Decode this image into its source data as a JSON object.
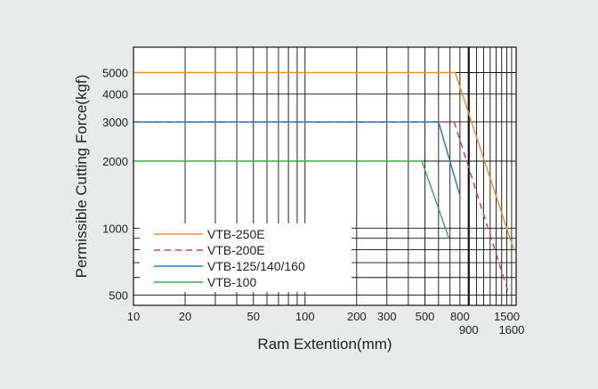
{
  "chart_data": {
    "type": "line",
    "title": "",
    "xlabel": "Ram Extention(mm)",
    "ylabel": "Permissible Cutting Force(kgf)",
    "xscale": "log",
    "yscale": "log",
    "xlim": [
      10,
      1700
    ],
    "ylim": [
      450,
      6500
    ],
    "grid": true,
    "legend_position": "bottom-left",
    "x_tick_labels": [
      {
        "value": 10,
        "label": "10",
        "row": 0
      },
      {
        "value": 20,
        "label": "20",
        "row": 0
      },
      {
        "value": 50,
        "label": "50",
        "row": 0
      },
      {
        "value": 100,
        "label": "100",
        "row": 0
      },
      {
        "value": 200,
        "label": "200",
        "row": 0
      },
      {
        "value": 300,
        "label": "300",
        "row": 0
      },
      {
        "value": 500,
        "label": "500",
        "row": 0
      },
      {
        "value": 800,
        "label": "800",
        "row": 0
      },
      {
        "value": 900,
        "label": "900",
        "row": 1
      },
      {
        "value": 1500,
        "label": "1500",
        "row": 0
      },
      {
        "value": 1600,
        "label": "1600",
        "row": 1
      }
    ],
    "y_tick_labels": [
      {
        "value": 500,
        "label": "500"
      },
      {
        "value": 1000,
        "label": "1000"
      },
      {
        "value": 2000,
        "label": "2000"
      },
      {
        "value": 3000,
        "label": "3000"
      },
      {
        "value": 4000,
        "label": "4000"
      },
      {
        "value": 5000,
        "label": "5000"
      }
    ],
    "x_grid": [
      10,
      20,
      30,
      40,
      50,
      60,
      70,
      80,
      90,
      100,
      200,
      300,
      400,
      500,
      600,
      700,
      800,
      900,
      1000,
      1100,
      1200,
      1300,
      1400,
      1500,
      1600
    ],
    "x_grid_bold": [
      900
    ],
    "y_grid": [
      500,
      600,
      700,
      800,
      900,
      1000,
      2000,
      3000,
      4000,
      5000
    ],
    "series": [
      {
        "name": "VTB-250E",
        "color": "#f0902c",
        "dash": false,
        "x": [
          10,
          750,
          1650
        ],
        "y": [
          5000,
          5000,
          800
        ]
      },
      {
        "name": "VTB-200E",
        "color": "#e23a5a",
        "dash": true,
        "x": [
          10,
          740,
          1550
        ],
        "y": [
          3000,
          3000,
          500
        ]
      },
      {
        "name": "VTB-125/140/160",
        "color": "#2a7ec4",
        "dash": false,
        "x": [
          10,
          600,
          800
        ],
        "y": [
          3000,
          3000,
          1400
        ]
      },
      {
        "name": "VTB-100",
        "color": "#3fae4c",
        "dash": false,
        "x": [
          10,
          480,
          690
        ],
        "y": [
          2000,
          2000,
          900
        ]
      }
    ]
  }
}
